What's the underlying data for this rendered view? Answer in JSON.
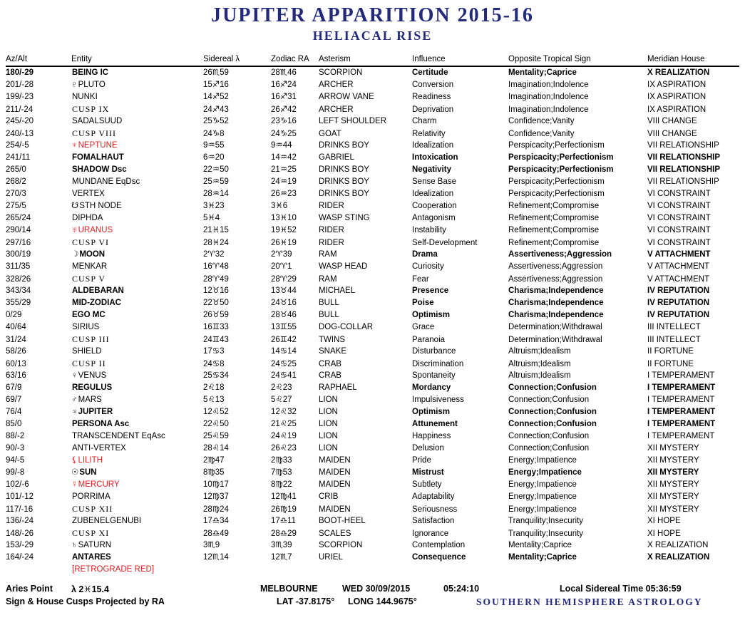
{
  "title": "JUPITER APPARITION 2015-16",
  "subtitle": "HELIACAL RISE",
  "colors": {
    "navy": "#232a7c",
    "red": "#dd2222",
    "text": "#000000"
  },
  "table": {
    "columns": [
      "Az/Alt",
      "Entity",
      "Sidereal λ",
      "Zodiac RA",
      "Asterism",
      "Influence",
      "Opposite Tropical Sign",
      "Meridian House"
    ],
    "row_fields": [
      "az_alt",
      "glyph",
      "entity",
      "sidereal",
      "zodiac_ra",
      "asterism",
      "influence",
      "opposite_tropical_sign",
      "meridian_house",
      "style"
    ],
    "rows": [
      [
        "180/-29",
        "",
        "BEING IC",
        "26♏59",
        "28♏46",
        "SCORPION",
        "Certitude",
        "Mentality;Caprice",
        "X REALIZATION",
        "bold az-bold"
      ],
      [
        "201/-28",
        "♇",
        "PLUTO",
        "15♐16",
        "16♐24",
        "ARCHER",
        "Conversion",
        "Imagination;Indolence",
        "IX ASPIRATION",
        ""
      ],
      [
        "199/-23",
        "",
        "NUNKI",
        "14♐52",
        "16♐31",
        "ARROW VANE",
        "Readiness",
        "Imagination;Indolence",
        "IX ASPIRATION",
        ""
      ],
      [
        "211/-24",
        "",
        "CUSP IX",
        "24♐43",
        "26♐42",
        "ARCHER",
        "Deprivation",
        "Imagination;Indolence",
        "IX ASPIRATION",
        "cusp"
      ],
      [
        "245/-20",
        "",
        "SADALSUUD",
        "25♑52",
        "23♑16",
        "LEFT SHOULDER",
        "Charm",
        "Confidence;Vanity",
        "VIII CHANGE",
        ""
      ],
      [
        "240/-13",
        "",
        "CUSP VIII",
        "24♑8",
        "24♑25",
        "GOAT",
        "Relativity",
        "Confidence;Vanity",
        "VIII CHANGE",
        "cusp"
      ],
      [
        "254/-5",
        "♆",
        "NEPTUNE",
        "9♒55",
        "9♒44",
        "DRINKS BOY",
        "Idealization",
        "Perspicacity;Perfectionism",
        "VII RELATIONSHIP",
        "red"
      ],
      [
        "241/11",
        "",
        "FOMALHAUT",
        "6♒20",
        "14♒42",
        "GABRIEL",
        "Intoxication",
        "Perspicacity;Perfectionism",
        "VII RELATIONSHIP",
        "bold"
      ],
      [
        "265/0",
        "",
        "SHADOW Dsc",
        "22♒50",
        "21♒25",
        "DRINKS BOY",
        "Negativity",
        "Perspicacity;Perfectionism",
        "VII RELATIONSHIP",
        "bold"
      ],
      [
        "268/2",
        "",
        "MUNDANE EqDsc",
        "25♒59",
        "24♒19",
        "DRINKS BOY",
        "Sense Base",
        "Perspicacity;Perfectionism",
        "VII RELATIONSHIP",
        ""
      ],
      [
        "270/3",
        "",
        "VERTEX",
        "28♒14",
        "26♒23",
        "DRINKS BOY",
        "Idealization",
        "Perspicacity;Perfectionism",
        "VI CONSTRAINT",
        ""
      ],
      [
        "275/5",
        "☋",
        "STH NODE",
        "3♓23",
        "3♓6",
        "RIDER",
        "Cooperation",
        "Refinement;Compromise",
        "VI CONSTRAINT",
        ""
      ],
      [
        "265/24",
        "",
        "DIPHDA",
        "5♓4",
        "13♓10",
        "WASP STING",
        "Antagonism",
        "Refinement;Compromise",
        "VI CONSTRAINT",
        ""
      ],
      [
        "290/14",
        "♅",
        "URANUS",
        "21♓15",
        "19♓52",
        "RIDER",
        "Instability",
        "Refinement;Compromise",
        "VI CONSTRAINT",
        "red"
      ],
      [
        "297/16",
        "",
        "CUSP VI",
        "28♓24",
        "26♓19",
        "RIDER",
        "Self-Development",
        "Refinement;Compromise",
        "VI CONSTRAINT",
        "cusp"
      ],
      [
        "300/19",
        "☽",
        "MOON",
        "2♈32",
        "2♈39",
        "RAM",
        "Drama",
        "Assertiveness;Aggression",
        "V ATTACHMENT",
        "bold"
      ],
      [
        "311/35",
        "",
        "MENKAR",
        "16♈48",
        "20♈1",
        "WASP HEAD",
        "Curiosity",
        "Assertiveness;Aggression",
        "V ATTACHMENT",
        ""
      ],
      [
        "328/26",
        "",
        "CUSP V",
        "28♈49",
        "28♈29",
        "RAM",
        "Fear",
        "Assertiveness;Aggression",
        "V ATTACHMENT",
        "cusp"
      ],
      [
        "343/34",
        "",
        "ALDEBARAN",
        "12♉16",
        "13♉44",
        "MICHAEL",
        "Presence",
        "Charisma;Independence",
        "IV REPUTATION",
        "bold"
      ],
      [
        "355/29",
        "",
        "MID-ZODIAC",
        "22♉50",
        "24♉16",
        "BULL",
        "Poise",
        "Charisma;Independence",
        "IV REPUTATION",
        "bold"
      ],
      [
        "0/29",
        "",
        "EGO MC",
        "26♉59",
        "28♉46",
        "BULL",
        "Optimism",
        "Charisma;Independence",
        "IV REPUTATION",
        "bold"
      ],
      [
        "40/64",
        "",
        "SIRIUS",
        "16♊33",
        "13♊55",
        "DOG-COLLAR",
        "Grace",
        "Determination;Withdrawal",
        "III INTELLECT",
        ""
      ],
      [
        "31/24",
        "",
        "CUSP III",
        "24♊43",
        "26♊42",
        "TWINS",
        "Paranoia",
        "Determination;Withdrawal",
        "III INTELLECT",
        "cusp"
      ],
      [
        "58/26",
        "",
        "SHIELD",
        "17♋3",
        "14♋14",
        "SNAKE",
        "Disturbance",
        "Altruism;Idealism",
        "II FORTUNE",
        ""
      ],
      [
        "60/13",
        "",
        "CUSP II",
        "24♋8",
        "24♋25",
        "CRAB",
        "Discrimination",
        "Altruism;Idealism",
        "II FORTUNE",
        "cusp"
      ],
      [
        "63/16",
        "♀",
        "VENUS",
        "25♋34",
        "24♋41",
        "CRAB",
        "Spontaneity",
        "Altruism;Idealism",
        "I TEMPERAMENT",
        ""
      ],
      [
        "67/9",
        "",
        "REGULUS",
        "2♌18",
        "2♌23",
        "RAPHAEL",
        "Mordancy",
        "Connection;Confusion",
        "I TEMPERAMENT",
        "bold"
      ],
      [
        "69/7",
        "♂",
        "MARS",
        "5♌13",
        "5♌27",
        "LION",
        "Impulsiveness",
        "Connection;Confusion",
        "I TEMPERAMENT",
        ""
      ],
      [
        "76/4",
        "♃",
        "JUPITER",
        "12♌52",
        "12♌32",
        "LION",
        "Optimism",
        "Connection;Confusion",
        "I TEMPERAMENT",
        "bold"
      ],
      [
        "85/0",
        "",
        "PERSONA Asc",
        "22♌50",
        "21♌25",
        "LION",
        "Attunement",
        "Connection;Confusion",
        "I TEMPERAMENT",
        "bold"
      ],
      [
        "88/-2",
        "",
        "TRANSCENDENT EqAsc",
        "25♌59",
        "24♌19",
        "LION",
        "Happiness",
        "Connection;Confusion",
        "I TEMPERAMENT",
        ""
      ],
      [
        "90/-3",
        "",
        "ANTI-VERTEX",
        "28♌14",
        "26♌23",
        "LION",
        "Delusion",
        "Connection;Confusion",
        "XII MYSTERY",
        ""
      ],
      [
        "94/-5",
        "⚸",
        "LILITH",
        "2♍47",
        "2♍33",
        "MAIDEN",
        "Pride",
        "Energy;Impatience",
        "XII MYSTERY",
        "red"
      ],
      [
        "99/-8",
        "☉",
        "SUN",
        "8♍35",
        "7♍53",
        "MAIDEN",
        "Mistrust",
        "Energy;Impatience",
        "XII MYSTERY",
        "bold"
      ],
      [
        "102/-6",
        "☿",
        "MERCURY",
        "10♍17",
        "8♍22",
        "MAIDEN",
        "Subtlety",
        "Energy;Impatience",
        "XII MYSTERY",
        "red"
      ],
      [
        "101/-12",
        "",
        "PORRIMA",
        "12♍37",
        "12♍41",
        "CRIB",
        "Adaptability",
        "Energy;Impatience",
        "XII MYSTERY",
        ""
      ],
      [
        "117/-16",
        "",
        "CUSP XII",
        "28♍24",
        "26♍19",
        "MAIDEN",
        "Seriousness",
        "Energy;Impatience",
        "XII MYSTERY",
        "cusp"
      ],
      [
        "136/-24",
        "",
        "ZUBENELGENUBI",
        "17♎34",
        "17♎11",
        "BOOT-HEEL",
        "Satisfaction",
        "Tranquility;Insecurity",
        "XI HOPE",
        ""
      ],
      [
        "148/-26",
        "",
        "CUSP XI",
        "28♎49",
        "28♎29",
        "SCALES",
        "Ignorance",
        "Tranquility;Insecurity",
        "XI HOPE",
        "cusp"
      ],
      [
        "153/-29",
        "♄",
        "SATURN",
        "3♏9",
        "3♏39",
        "SCORPION",
        "Contemplation",
        "Mentality;Caprice",
        "X REALIZATION",
        ""
      ],
      [
        "164/-24",
        "",
        "ANTARES",
        "12♏14",
        "12♏7",
        "URIEL",
        "Consequence",
        "Mentality;Caprice",
        "X REALIZATION",
        "bold"
      ],
      [
        "",
        "",
        "[RETROGRADE RED]",
        "",
        "",
        "",
        "",
        "",
        "",
        "red"
      ]
    ]
  },
  "footer": {
    "aries_point_label": "Aries Point",
    "aries_point_value": "λ 2♓15.4",
    "city": "MELBOURNE",
    "date": "WED 30/09/2015",
    "time": "05:24:10",
    "sidereal_time": "Local Sidereal Time 05:36:59",
    "projection_note": "Sign & House Cusps Projected by RA",
    "latitude": "LAT -37.8175°",
    "longitude": "LONG 144.9675°",
    "brand": "SOUTHERN HEMISPHERE ASTROLOGY"
  }
}
